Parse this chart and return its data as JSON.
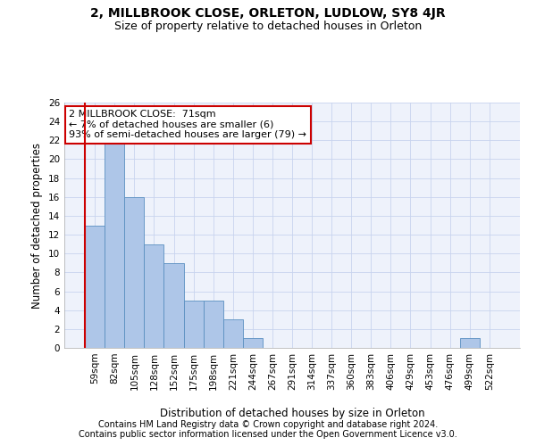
{
  "title": "2, MILLBROOK CLOSE, ORLETON, LUDLOW, SY8 4JR",
  "subtitle": "Size of property relative to detached houses in Orleton",
  "xlabel": "Distribution of detached houses by size in Orleton",
  "ylabel": "Number of detached properties",
  "categories": [
    "59sqm",
    "82sqm",
    "105sqm",
    "128sqm",
    "152sqm",
    "175sqm",
    "198sqm",
    "221sqm",
    "244sqm",
    "267sqm",
    "291sqm",
    "314sqm",
    "337sqm",
    "360sqm",
    "383sqm",
    "406sqm",
    "429sqm",
    "453sqm",
    "476sqm",
    "499sqm",
    "522sqm"
  ],
  "values": [
    13,
    22,
    16,
    11,
    9,
    5,
    5,
    3,
    1,
    0,
    0,
    0,
    0,
    0,
    0,
    0,
    0,
    0,
    0,
    1,
    0
  ],
  "bar_color": "#aec6e8",
  "bar_edge_color": "#5a8fc0",
  "vline_color": "#cc0000",
  "annotation_line1": "2 MILLBROOK CLOSE:  71sqm",
  "annotation_line2": "← 7% of detached houses are smaller (6)",
  "annotation_line3": "93% of semi-detached houses are larger (79) →",
  "annotation_box_color": "#cc0000",
  "ylim": [
    0,
    26
  ],
  "yticks": [
    0,
    2,
    4,
    6,
    8,
    10,
    12,
    14,
    16,
    18,
    20,
    22,
    24,
    26
  ],
  "footer_line1": "Contains HM Land Registry data © Crown copyright and database right 2024.",
  "footer_line2": "Contains public sector information licensed under the Open Government Licence v3.0.",
  "background_color": "#eef2fb",
  "grid_color": "#c8d4ee",
  "title_fontsize": 10,
  "subtitle_fontsize": 9,
  "axis_label_fontsize": 8.5,
  "tick_fontsize": 7.5,
  "annotation_fontsize": 8,
  "footer_fontsize": 7
}
